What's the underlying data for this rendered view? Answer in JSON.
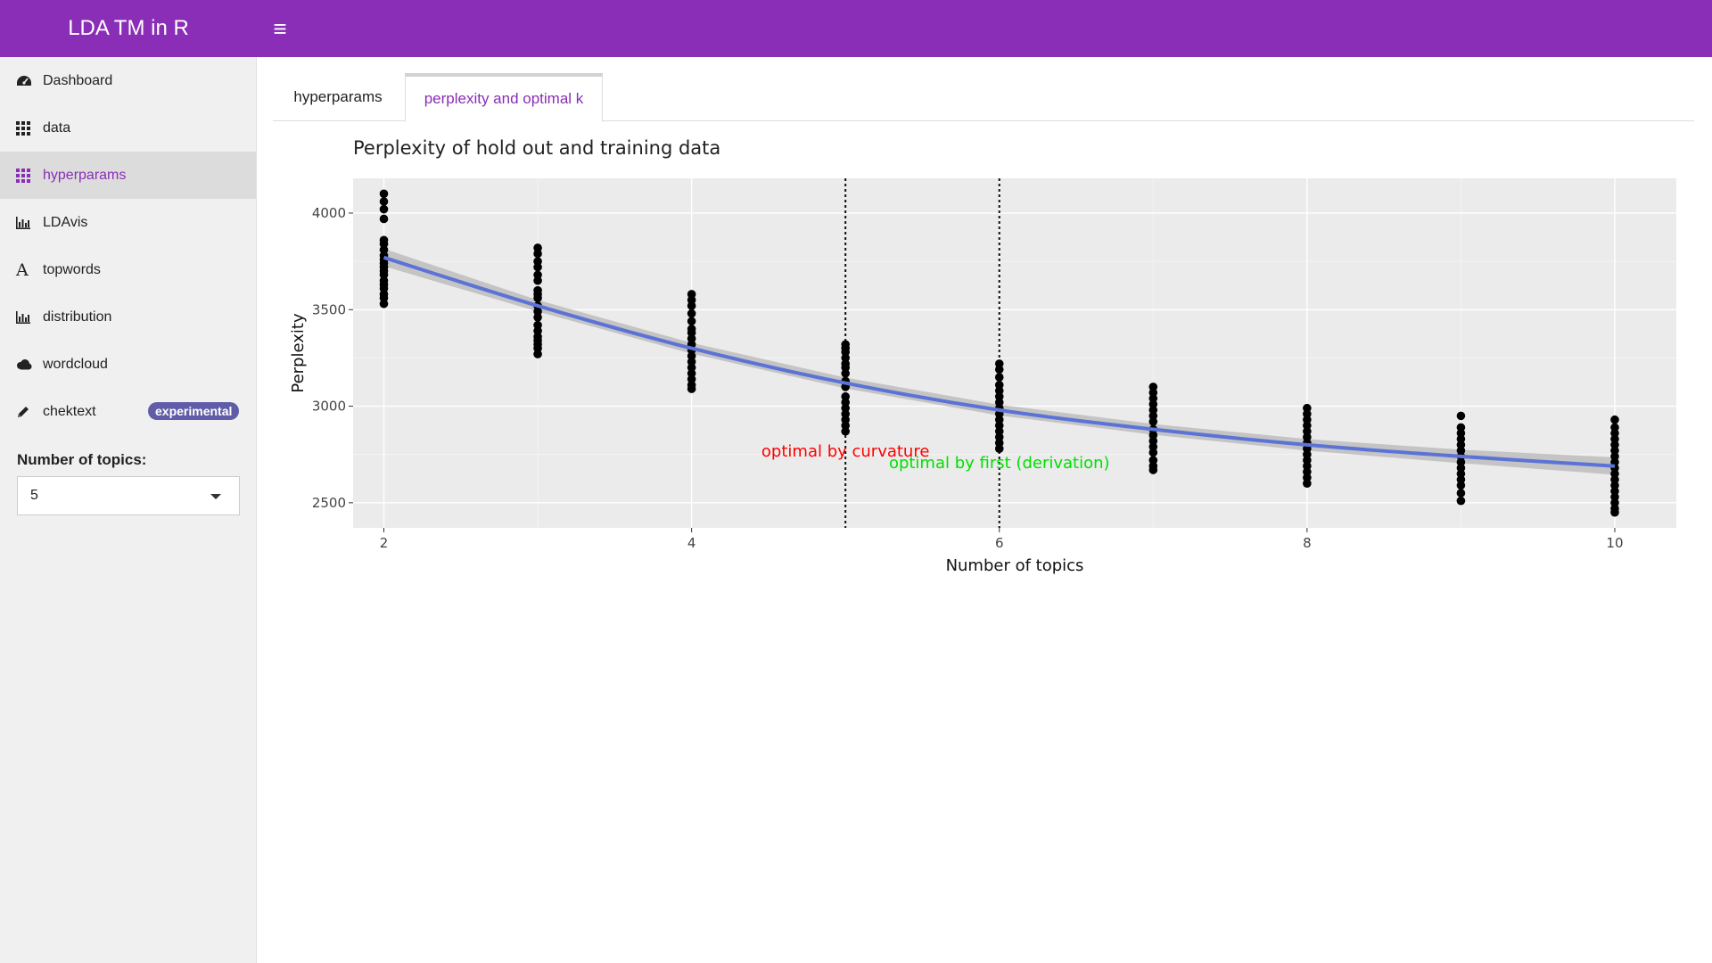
{
  "app": {
    "title": "LDA TM in R",
    "menu_toggle_icon": "hamburger-icon"
  },
  "sidebar": {
    "items": [
      {
        "label": "Dashboard",
        "icon": "dashboard-icon"
      },
      {
        "label": "data",
        "icon": "grid-icon"
      },
      {
        "label": "hyperparams",
        "icon": "grid-icon",
        "active": true
      },
      {
        "label": "LDAvis",
        "icon": "bar-chart-icon"
      },
      {
        "label": "topwords",
        "icon": "font-icon"
      },
      {
        "label": "distribution",
        "icon": "bar-chart-icon"
      },
      {
        "label": "wordcloud",
        "icon": "cloud-icon"
      },
      {
        "label": "chektext",
        "icon": "pencil-icon",
        "badge": "experimental"
      }
    ],
    "topics_label": "Number of topics:",
    "topics_value": "5"
  },
  "tabs": [
    {
      "label": "hyperparams"
    },
    {
      "label": "perplexity and optimal k",
      "active": true
    }
  ],
  "colors": {
    "accent": "#8a2eb7",
    "badge": "#605ca8",
    "smooth_line": "#5b73d6"
  },
  "chart_data": {
    "type": "scatter",
    "title": "Perplexity of hold out and training data",
    "xlabel": "Number of topics",
    "ylabel": "Perplexity",
    "xlim": [
      1.8,
      10.4
    ],
    "ylim": [
      2370,
      4180
    ],
    "x_ticks": [
      2,
      4,
      6,
      8,
      10
    ],
    "y_ticks": [
      2500,
      3000,
      3500,
      4000
    ],
    "grid": true,
    "points": [
      {
        "x": 2,
        "y": [
          4100,
          4060,
          4020,
          3970,
          3860,
          3840,
          3810,
          3780,
          3760,
          3740,
          3720,
          3700,
          3680,
          3650,
          3630,
          3610,
          3580,
          3560,
          3530
        ]
      },
      {
        "x": 3,
        "y": [
          3820,
          3790,
          3750,
          3720,
          3680,
          3650,
          3600,
          3580,
          3560,
          3520,
          3490,
          3460,
          3420,
          3390,
          3360,
          3340,
          3320,
          3300,
          3270
        ]
      },
      {
        "x": 4,
        "y": [
          3580,
          3550,
          3520,
          3480,
          3440,
          3400,
          3380,
          3350,
          3320,
          3290,
          3260,
          3230,
          3200,
          3170,
          3140,
          3110,
          3090
        ]
      },
      {
        "x": 5,
        "y": [
          3320,
          3300,
          3280,
          3250,
          3220,
          3200,
          3170,
          3130,
          3100,
          3050,
          3020,
          2990,
          2960,
          2930,
          2900,
          2870
        ]
      },
      {
        "x": 6,
        "y": [
          3220,
          3190,
          3150,
          3110,
          3080,
          3050,
          3020,
          2990,
          2960,
          2930,
          2900,
          2870,
          2840,
          2810,
          2780
        ]
      },
      {
        "x": 7,
        "y": [
          3100,
          3070,
          3040,
          3010,
          2980,
          2950,
          2920,
          2880,
          2850,
          2820,
          2790,
          2760,
          2720,
          2690,
          2670
        ]
      },
      {
        "x": 8,
        "y": [
          2990,
          2960,
          2930,
          2900,
          2870,
          2840,
          2810,
          2780,
          2750,
          2720,
          2690,
          2660,
          2630,
          2600
        ]
      },
      {
        "x": 9,
        "y": [
          2950,
          2890,
          2860,
          2830,
          2800,
          2770,
          2740,
          2710,
          2680,
          2650,
          2620,
          2590,
          2550,
          2510
        ]
      },
      {
        "x": 10,
        "y": [
          2930,
          2890,
          2860,
          2830,
          2800,
          2770,
          2740,
          2710,
          2680,
          2650,
          2620,
          2590,
          2560,
          2530,
          2500,
          2470,
          2450
        ]
      }
    ],
    "smooth": {
      "x": [
        2,
        3,
        4,
        5,
        6,
        7,
        8,
        9,
        10
      ],
      "y": [
        3770,
        3520,
        3300,
        3120,
        2980,
        2880,
        2800,
        2740,
        2690
      ],
      "band": [
        45,
        30,
        28,
        28,
        28,
        28,
        30,
        35,
        45
      ]
    },
    "vlines": [
      5,
      6
    ],
    "annotations": [
      {
        "text": "optimal by curvature",
        "x": 5,
        "y": 2740,
        "color": "#ff0000"
      },
      {
        "text": "optimal by first (derivation)",
        "x": 6,
        "y": 2680,
        "color": "#00e000"
      }
    ]
  }
}
